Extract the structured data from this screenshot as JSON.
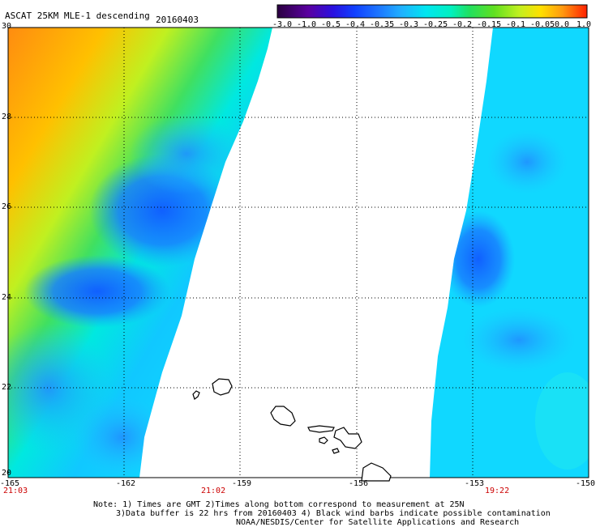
{
  "title": "ASCAT 25KM MLE-1 descending",
  "date": "20160403",
  "colorbar": {
    "labels": [
      "-3.0",
      "-1.0",
      "-0.5",
      "-0.4",
      "-0.35",
      "-0.3",
      "-0.25",
      "-0.2",
      "-0.15",
      "-0.1",
      "-0.05",
      "0.0",
      "1.0"
    ],
    "colors": [
      "#2a0040",
      "#5a00a0",
      "#2a10e0",
      "#1040ff",
      "#1e78ff",
      "#20b0ff",
      "#00e6f0",
      "#00f0c0",
      "#20e060",
      "#60e020",
      "#c0f020",
      "#ffe000",
      "#ff9a10",
      "#ff5010",
      "#ff2000"
    ]
  },
  "axes": {
    "lon_ticks": [
      "-165",
      "-162",
      "-159",
      "-156",
      "-153",
      "-150"
    ],
    "lat_ticks": [
      "30",
      "28",
      "26",
      "24",
      "22",
      "20"
    ]
  },
  "times": [
    "21:03",
    "21:02",
    "19:22"
  ],
  "footer": {
    "line1": "Note: 1) Times are GMT 2)Times along bottom correspond to measurement at 25N",
    "line2": "3)Data buffer is 22 hrs from 20160403 4) Black wind barbs indicate possible contamination",
    "line3": "NOAA/NESDIS/Center for Satellite Applications and Research"
  },
  "colors": {
    "time_label": "#cc0000",
    "land": "#ffffff",
    "coast": "#000000"
  }
}
